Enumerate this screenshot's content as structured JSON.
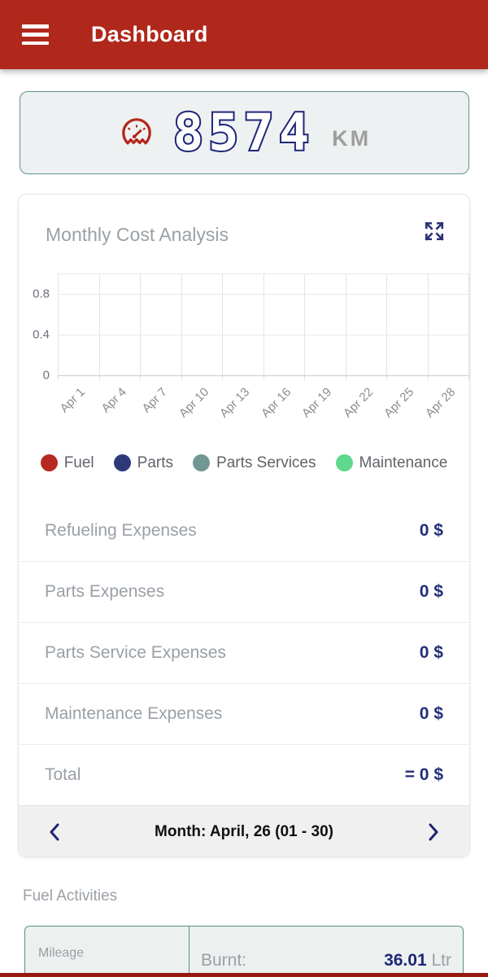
{
  "header": {
    "title": "Dashboard",
    "menu_icon": "hamburger-menu"
  },
  "odometer": {
    "value": "8574",
    "unit": "KM",
    "icon": "speedometer-gauge",
    "icon_color": "#b5251a",
    "digit_color": "#1d2678"
  },
  "cost_card": {
    "title": "Monthly Cost Analysis",
    "expand_icon": "fullscreen-expand",
    "rows": [
      {
        "label": "Refueling Expenses",
        "value": "0 $"
      },
      {
        "label": "Parts Expenses",
        "value": "0 $"
      },
      {
        "label": "Parts Service Expenses",
        "value": "0 $"
      },
      {
        "label": "Maintenance Expenses",
        "value": "0 $"
      }
    ],
    "total": {
      "label": "Total",
      "value": "= 0 $"
    },
    "month_nav": {
      "label": "Month: April, 26 (01 - 30)",
      "prev_icon": "chevron-left",
      "next_icon": "chevron-right",
      "arrow_color": "#1d2678"
    }
  },
  "chart_data": {
    "type": "line",
    "title": "Monthly Cost Analysis",
    "x": [
      "Apr 1",
      "Apr 4",
      "Apr 7",
      "Apr 10",
      "Apr 13",
      "Apr 16",
      "Apr 19",
      "Apr 22",
      "Apr 25",
      "Apr 28"
    ],
    "yticks": [
      0,
      0.4,
      0.8
    ],
    "ylim": [
      0,
      1
    ],
    "grid": true,
    "legend_position": "bottom",
    "series": [
      {
        "name": "Fuel",
        "color": "#b52a20",
        "values": []
      },
      {
        "name": "Parts",
        "color": "#2e3a78",
        "values": []
      },
      {
        "name": "Parts Services",
        "color": "#719795",
        "values": []
      },
      {
        "name": "Maintenance",
        "color": "#5fd78c",
        "values": []
      }
    ],
    "note": "chart area is empty - no data plotted for the month"
  },
  "fuel_activities": {
    "title": "Fuel Activities",
    "table": {
      "col_left": "Mileage",
      "col_right_label": "Burnt:",
      "col_right_value": "36.01",
      "col_right_unit": "Ltr"
    }
  }
}
